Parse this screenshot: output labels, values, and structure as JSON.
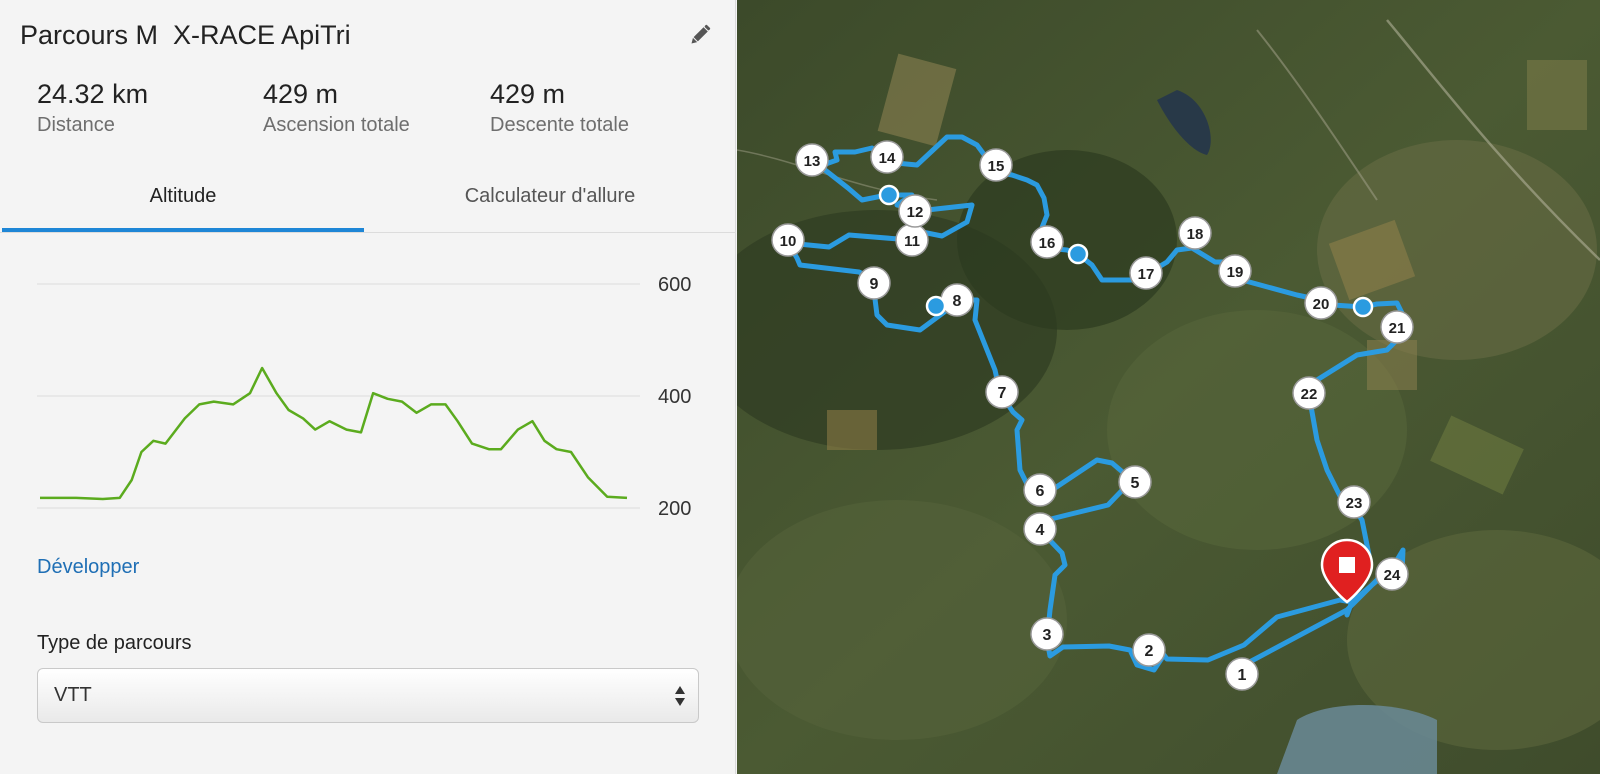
{
  "header": {
    "title": "Parcours M  X-RACE ApiTri",
    "edit_icon": "pencil-icon"
  },
  "stats": [
    {
      "value": "24.32 km",
      "label": "Distance"
    },
    {
      "value": "429 m",
      "label": "Ascension totale"
    },
    {
      "value": "429 m",
      "label": "Descente totale"
    }
  ],
  "tabs": [
    {
      "label": "Altitude",
      "active": true
    },
    {
      "label": "Calculateur d'allure",
      "active": false
    }
  ],
  "chart_data": {
    "type": "line",
    "title": "",
    "xlabel": "",
    "ylabel": "",
    "ylim": [
      200,
      600
    ],
    "yticks": [
      {
        "value": 600,
        "label": "600"
      },
      {
        "value": 400,
        "label": "400"
      },
      {
        "value": 200,
        "label": "200"
      }
    ],
    "grid": true,
    "line_color": "#5bab1e",
    "x": [
      0.0,
      1.5,
      2.6,
      3.3,
      3.8,
      4.2,
      4.7,
      5.2,
      6.0,
      6.6,
      7.2,
      8.0,
      8.7,
      9.2,
      9.8,
      10.3,
      10.9,
      11.4,
      12.0,
      12.7,
      13.3,
      13.8,
      14.4,
      15.0,
      15.6,
      16.2,
      16.8,
      17.3,
      17.9,
      18.6,
      19.1,
      19.8,
      20.4,
      20.9,
      21.4,
      22.0,
      22.7,
      23.5,
      24.32
    ],
    "y": [
      218,
      218,
      216,
      218,
      250,
      300,
      320,
      315,
      360,
      385,
      390,
      385,
      405,
      450,
      405,
      375,
      360,
      340,
      355,
      340,
      335,
      405,
      395,
      390,
      370,
      385,
      385,
      355,
      315,
      305,
      305,
      340,
      355,
      320,
      305,
      300,
      255,
      220,
      218
    ]
  },
  "expand_label": "Développer",
  "route_type": {
    "label": "Type de parcours",
    "value": "VTT"
  },
  "map": {
    "route_color": "#2b9be0",
    "end_marker_color": "#e02020",
    "markers": [
      "1",
      "2",
      "3",
      "4",
      "5",
      "6",
      "7",
      "8",
      "9",
      "10",
      "11",
      "12",
      "13",
      "14",
      "15",
      "16",
      "17",
      "18",
      "19",
      "20",
      "21",
      "22",
      "23",
      "24"
    ]
  }
}
